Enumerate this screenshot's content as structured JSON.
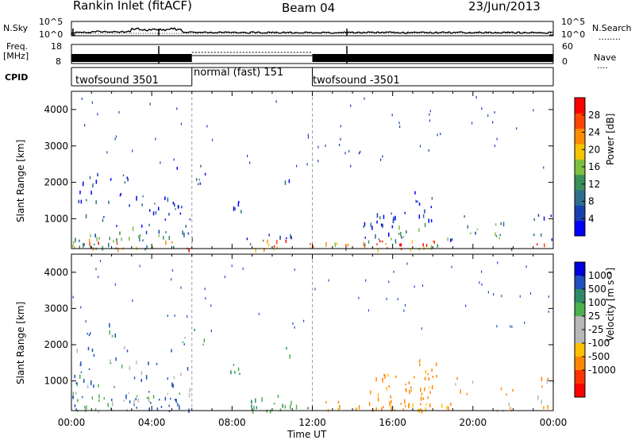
{
  "header": {
    "station": "Rankin Inlet (fitACF)",
    "beam": "Beam 04",
    "date": "23/Jun/2013"
  },
  "side_labels": {
    "nsky": "N.Sky",
    "nsearch": "N.Search",
    "nsearch_marker": "........",
    "freq_line1": "Freq.",
    "freq_line2": "[MHz]",
    "nave": "Nave",
    "nave_marker": "....",
    "cpid": "CPID"
  },
  "noise_panel": {
    "yticks_left": [
      "10^5",
      "10^0"
    ],
    "yticks_right": [
      "10^5",
      "10^0"
    ]
  },
  "freq_panel": {
    "yticks_left": [
      "18",
      "8"
    ],
    "yticks_right": [
      "60",
      "0"
    ]
  },
  "cpid_segments": [
    {
      "start": 0,
      "end": 6,
      "label": "twofsound 3501"
    },
    {
      "start": 6,
      "end": 12,
      "label": "normal (fast) 151"
    },
    {
      "start": 12,
      "end": 24,
      "label": "twofsound -3501"
    }
  ],
  "colors": {
    "power": [
      "#0000ff",
      "#1a3fae",
      "#2e6f8e",
      "#3a8f5a",
      "#7fbf3f",
      "#f5c400",
      "#ff8c00",
      "#ff4500",
      "#ff0000"
    ],
    "velocity": [
      "#0000dd",
      "#1f4fc0",
      "#2f8a6a",
      "#4cb04c",
      "#b8b8b8",
      "#b8b8b8",
      "#ffc000",
      "#ff8800",
      "#ff3300",
      "#ff0000"
    ],
    "grid_dash": "#a0a0a0"
  },
  "chart_data": [
    {
      "type": "heatmap",
      "title": "Power",
      "ylabel": "Slant Range [km]",
      "xlabel": "",
      "xlim": [
        0,
        24
      ],
      "ylim": [
        180,
        4500
      ],
      "yticks": [
        1000,
        2000,
        3000,
        4000
      ],
      "colorbar": {
        "label": "Power [dB]",
        "range": [
          0,
          32
        ],
        "ticks": [
          4,
          8,
          12,
          16,
          20,
          24,
          28
        ]
      }
    },
    {
      "type": "heatmap",
      "title": "Velocity",
      "ylabel": "Slant Range [km]",
      "xlabel": "Time UT",
      "xlim": [
        0,
        24
      ],
      "ylim": [
        180,
        4500
      ],
      "yticks": [
        1000,
        2000,
        3000,
        4000
      ],
      "xticks": [
        "00:00",
        "04:00",
        "08:00",
        "12:00",
        "16:00",
        "20:00",
        "00:00"
      ],
      "colorbar": {
        "label": "Velocity [m s⁻¹]",
        "ticks": [
          "1000",
          "500",
          "100",
          "25",
          "-25",
          "-100",
          "-500",
          "-1000"
        ]
      }
    }
  ]
}
